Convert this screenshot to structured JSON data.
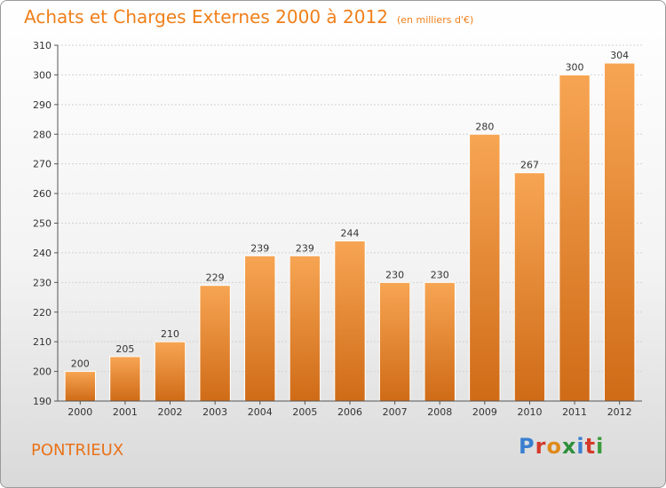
{
  "title": {
    "main": "Achats et Charges Externes 2000 à 2012",
    "unit": "(en milliers d'€)"
  },
  "commune": "PONTRIEUX",
  "logo": {
    "letters": [
      "P",
      "r",
      "o",
      "x",
      "i",
      "t",
      "i"
    ],
    "colors": [
      "#3a7fd0",
      "#d33a2a",
      "#e08a1a",
      "#2e8f3a",
      "#3a7fd0",
      "#d33a2a",
      "#3a9a3a"
    ]
  },
  "colors": {
    "bar_top": "#f7a553",
    "bar_bottom": "#cf6b17",
    "title": "#f07f1a",
    "axis": "#555555",
    "grid": "#d2d2d2"
  },
  "chart_data": {
    "type": "bar",
    "categories": [
      "2000",
      "2001",
      "2002",
      "2003",
      "2004",
      "2005",
      "2006",
      "2007",
      "2008",
      "2009",
      "2010",
      "2011",
      "2012"
    ],
    "values": [
      200,
      205,
      210,
      229,
      239,
      239,
      244,
      230,
      230,
      280,
      267,
      300,
      304
    ],
    "data_labels": [
      "200",
      "205",
      "210",
      "229",
      "239",
      "239",
      "244",
      "230",
      "230",
      "280",
      "267",
      "300",
      "304"
    ],
    "ylim": [
      190,
      310
    ],
    "yticks": [
      190,
      200,
      210,
      220,
      230,
      240,
      250,
      260,
      270,
      280,
      290,
      300,
      310
    ],
    "grid": true
  }
}
